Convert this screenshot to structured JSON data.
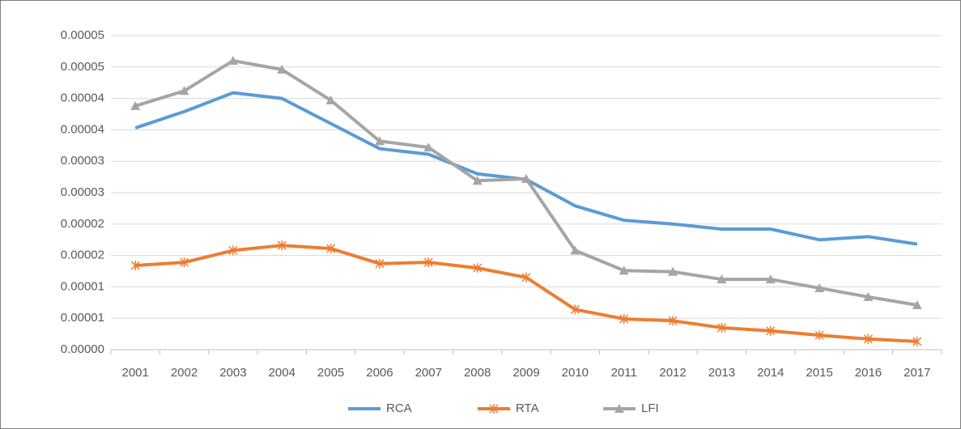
{
  "chart_data": {
    "type": "line",
    "categories": [
      "2001",
      "2002",
      "2003",
      "2004",
      "2005",
      "2006",
      "2007",
      "2008",
      "2009",
      "2010",
      "2011",
      "2012",
      "2013",
      "2014",
      "2015",
      "2016",
      "2017"
    ],
    "series": [
      {
        "name": "RCA",
        "color": "#5b9bd5",
        "marker": "none",
        "values": [
          3.53e-05,
          3.79e-05,
          4.09e-05,
          4e-05,
          3.6e-05,
          3.2e-05,
          3.11e-05,
          2.8e-05,
          2.71e-05,
          2.29e-05,
          2.06e-05,
          2e-05,
          1.92e-05,
          1.92e-05,
          1.75e-05,
          1.8e-05,
          1.68e-05
        ]
      },
      {
        "name": "RTA",
        "color": "#ed7d31",
        "marker": "star",
        "values": [
          1.34e-05,
          1.39e-05,
          1.58e-05,
          1.66e-05,
          1.61e-05,
          1.37e-05,
          1.39e-05,
          1.3e-05,
          1.15e-05,
          6.4e-06,
          4.9e-06,
          4.6e-06,
          3.5e-06,
          3e-06,
          2.3e-06,
          1.7e-06,
          1.3e-06
        ]
      },
      {
        "name": "LFI",
        "color": "#a5a5a5",
        "marker": "triangle",
        "values": [
          3.88e-05,
          4.12e-05,
          4.6e-05,
          4.46e-05,
          3.97e-05,
          3.32e-05,
          3.22e-05,
          2.69e-05,
          2.72e-05,
          1.58e-05,
          1.26e-05,
          1.24e-05,
          1.12e-05,
          1.12e-05,
          9.8e-06,
          8.4e-06,
          7.1e-06
        ]
      }
    ],
    "ylim": [
      0,
      5e-05
    ],
    "yticks": [
      {
        "value": 0,
        "label": "0.00000"
      },
      {
        "value": 5e-06,
        "label": "0.00001"
      },
      {
        "value": 1e-05,
        "label": "0.00001"
      },
      {
        "value": 1.5e-05,
        "label": "0.00002"
      },
      {
        "value": 2e-05,
        "label": "0.00002"
      },
      {
        "value": 2.5e-05,
        "label": "0.00003"
      },
      {
        "value": 3e-05,
        "label": "0.00003"
      },
      {
        "value": 3.5e-05,
        "label": "0.00004"
      },
      {
        "value": 4e-05,
        "label": "0.00004"
      },
      {
        "value": 4.5e-05,
        "label": "0.00005"
      },
      {
        "value": 5e-05,
        "label": "0.00005"
      }
    ],
    "grid": true,
    "legend": "bottom"
  }
}
